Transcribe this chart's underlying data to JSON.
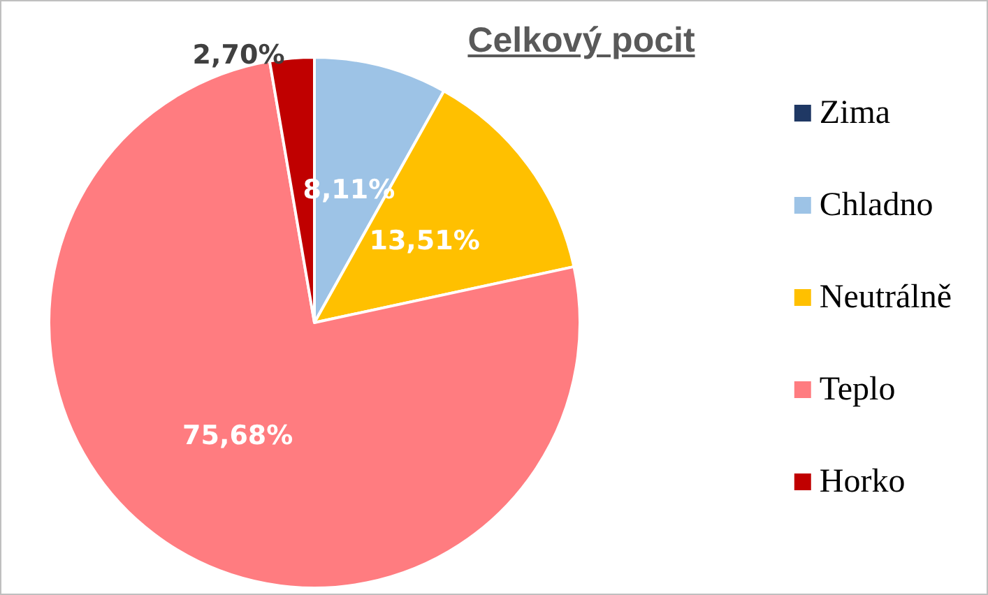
{
  "chart_data": {
    "type": "pie",
    "title": "Celkový pocit",
    "categories": [
      "Zima",
      "Chladno",
      "Neutrálně",
      "Teplo",
      "Horko"
    ],
    "values": [
      0,
      8.11,
      13.51,
      75.68,
      2.7
    ],
    "colors": [
      "#1f3864",
      "#9dc3e6",
      "#ffc000",
      "#ff7c80",
      "#c00000"
    ],
    "value_labels": [
      null,
      "8,11%",
      "13,51%",
      "75,68%",
      "2,70%"
    ],
    "legend": "right"
  }
}
